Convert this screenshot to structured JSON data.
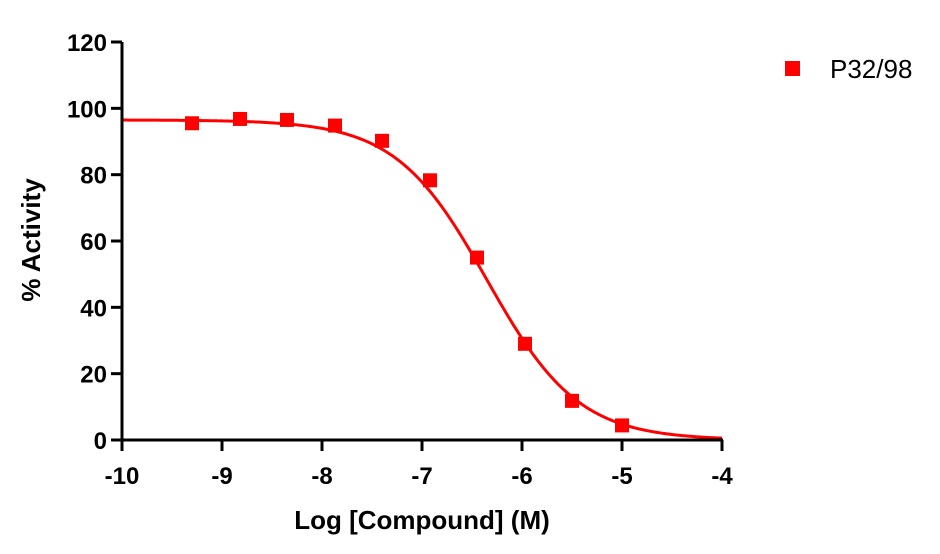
{
  "chart_data": {
    "type": "scatter",
    "title": "",
    "xlabel": "Log [Compound] (M)",
    "ylabel": "% Activity",
    "xlim": [
      -10,
      -4
    ],
    "ylim": [
      0,
      120
    ],
    "x_ticks": [
      -10,
      -9,
      -8,
      -7,
      -6,
      -5,
      -4
    ],
    "y_ticks": [
      0,
      20,
      40,
      60,
      80,
      100,
      120
    ],
    "grid": false,
    "legend_position": "top-right",
    "series": [
      {
        "name": "P32/98",
        "color": "#ff0000",
        "marker": "square",
        "x": [
          -9.3,
          -8.82,
          -8.35,
          -7.87,
          -7.4,
          -6.92,
          -6.45,
          -5.97,
          -5.5,
          -5.0
        ],
        "y": [
          95.5,
          96.8,
          96.5,
          94.8,
          90.2,
          78.3,
          55.0,
          29.0,
          11.8,
          4.4
        ],
        "fit": {
          "model": "sigmoidal dose-response",
          "bottom": 0,
          "top": 96.5,
          "log_ec50": -6.35,
          "hill_slope": -0.95
        }
      }
    ]
  }
}
